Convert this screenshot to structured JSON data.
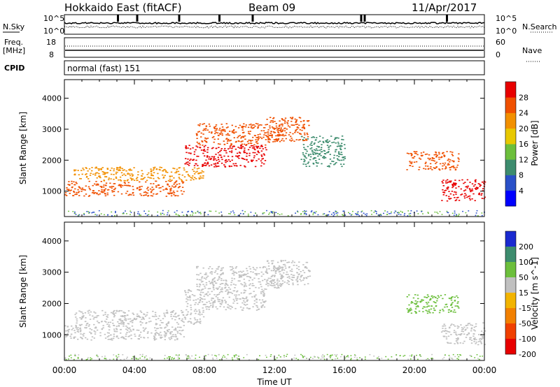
{
  "header": {
    "title": "Hokkaido East (fitACF)",
    "beam": "Beam 09",
    "date": "11/Apr/2017"
  },
  "top_panel": {
    "left_label": "N.Sky",
    "right_label": "N.Search",
    "left_ticks": [
      "10^5",
      "10^0"
    ],
    "right_ticks": [
      "10^5",
      "10^0"
    ]
  },
  "freq_panel": {
    "left_label_line1": "Freq.",
    "left_label_line2": "[MHz]",
    "right_label": "Nave",
    "left_ticks": [
      "18",
      "8"
    ],
    "right_ticks": [
      "60",
      "0"
    ],
    "cpid_label": "CPID",
    "cpid_value": "normal (fast) 151"
  },
  "chart_data": [
    {
      "type": "heatmap",
      "name": "power",
      "ylabel": "Slant Range [km]",
      "yticks": [
        1000,
        2000,
        3000,
        4000
      ],
      "ylim": [
        180,
        4600
      ],
      "colorbar_label": "Power [dB]",
      "colorbar_ticks": [
        4,
        8,
        12,
        16,
        20,
        24,
        28
      ],
      "colorbar_colors": [
        "#0000ff",
        "#2a50c8",
        "#3d8c6e",
        "#6cbf3c",
        "#e8c800",
        "#f29000",
        "#f05000",
        "#e80000"
      ],
      "bands": [
        {
          "t0": 0.0,
          "t1": 6.8,
          "r0": 850,
          "r1": 1350,
          "c": "#f05000"
        },
        {
          "t0": 0.5,
          "t1": 8.0,
          "r0": 1350,
          "r1": 1800,
          "c": "#f29000"
        },
        {
          "t0": 6.8,
          "t1": 11.5,
          "r0": 1800,
          "r1": 2500,
          "c": "#e80000"
        },
        {
          "t0": 7.5,
          "t1": 12.5,
          "r0": 2500,
          "r1": 3200,
          "c": "#f05000"
        },
        {
          "t0": 11.5,
          "t1": 14.0,
          "r0": 2600,
          "r1": 3400,
          "c": "#f05000"
        },
        {
          "t0": 13.5,
          "t1": 16.0,
          "r0": 1800,
          "r1": 2800,
          "c": "#3d8c6e"
        },
        {
          "t0": 19.5,
          "t1": 22.5,
          "r0": 1700,
          "r1": 2300,
          "c": "#f05000"
        },
        {
          "t0": 21.5,
          "t1": 24.0,
          "r0": 700,
          "r1": 1400,
          "c": "#e80000"
        }
      ]
    },
    {
      "type": "heatmap",
      "name": "velocity",
      "ylabel": "Slant Range [km]",
      "yticks": [
        1000,
        2000,
        3000,
        4000
      ],
      "ylim": [
        180,
        4600
      ],
      "colorbar_label": "Velocity [m s^-1]",
      "colorbar_ticks": [
        200,
        100,
        50,
        15,
        -15,
        -50,
        -100,
        -200
      ],
      "colorbar_colors": [
        "#1a2ad0",
        "#3d8c6e",
        "#6cbf3c",
        "#c0c0c0",
        "#f2b400",
        "#f28000",
        "#f04000",
        "#e80000"
      ],
      "bands": [
        {
          "t0": 0.0,
          "t1": 6.8,
          "r0": 850,
          "r1": 1350,
          "c": "#c0c0c0"
        },
        {
          "t0": 0.5,
          "t1": 8.0,
          "r0": 1350,
          "r1": 1800,
          "c": "#c0c0c0"
        },
        {
          "t0": 6.8,
          "t1": 11.5,
          "r0": 1800,
          "r1": 2500,
          "c": "#c0c0c0"
        },
        {
          "t0": 7.5,
          "t1": 12.5,
          "r0": 2500,
          "r1": 3200,
          "c": "#c0c0c0"
        },
        {
          "t0": 11.5,
          "t1": 14.0,
          "r0": 2600,
          "r1": 3400,
          "c": "#c0c0c0"
        },
        {
          "t0": 19.5,
          "t1": 22.5,
          "r0": 1700,
          "r1": 2300,
          "c": "#6cbf3c"
        },
        {
          "t0": 21.5,
          "t1": 24.0,
          "r0": 700,
          "r1": 1400,
          "c": "#c0c0c0"
        }
      ]
    }
  ],
  "x_axis": {
    "label": "Time UT",
    "ticks": [
      "00:00",
      "04:00",
      "08:00",
      "12:00",
      "16:00",
      "20:00",
      "00:00"
    ],
    "range_hours": [
      0,
      24
    ]
  }
}
